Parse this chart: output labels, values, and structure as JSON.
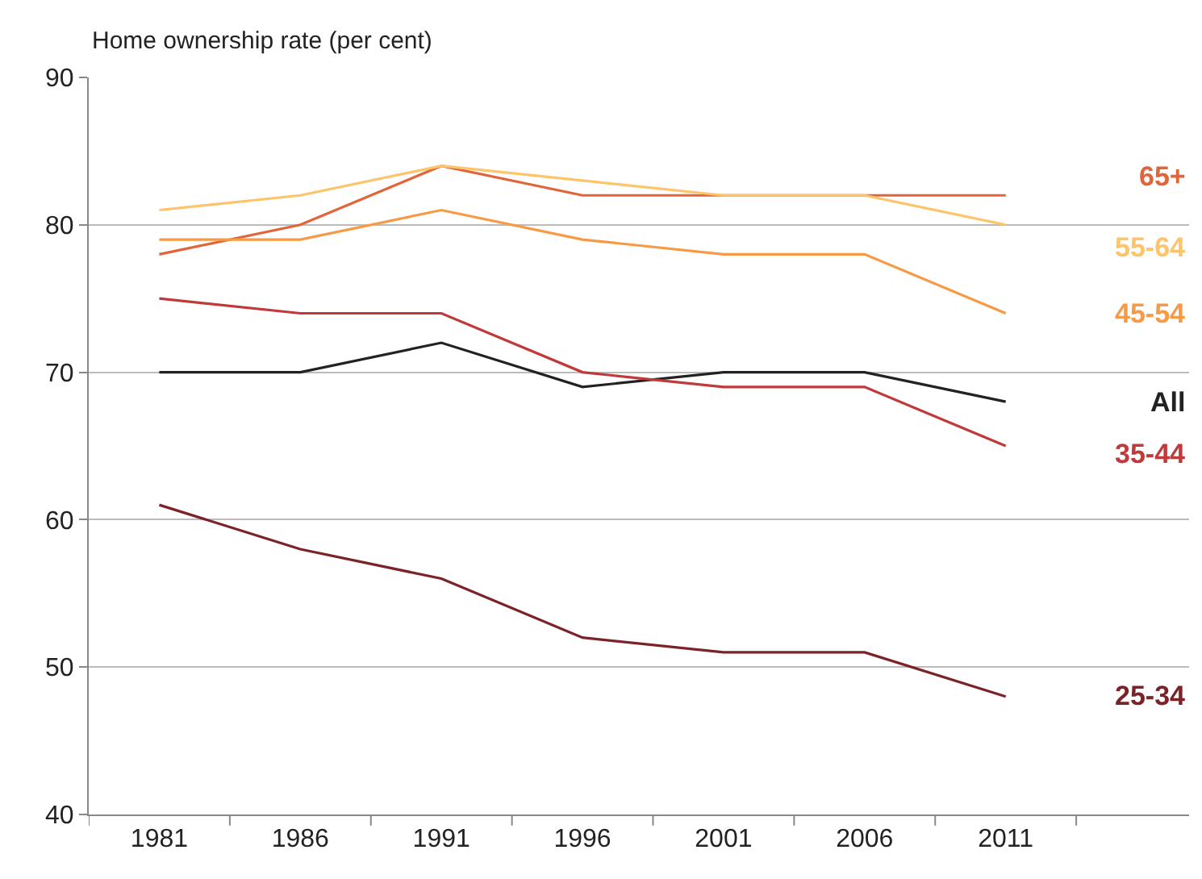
{
  "chart_data": {
    "type": "line",
    "ylabel": "Home ownership rate (per cent)",
    "categories": [
      "1981",
      "1986",
      "1991",
      "1996",
      "2001",
      "2006",
      "2011"
    ],
    "series": [
      {
        "name": "65+",
        "color": "#e0653a",
        "values": [
          78,
          80,
          84,
          82,
          82,
          82,
          82
        ]
      },
      {
        "name": "55-64",
        "color": "#fdc46a",
        "values": [
          81,
          82,
          84,
          83,
          82,
          82,
          80
        ]
      },
      {
        "name": "45-54",
        "color": "#f79a45",
        "values": [
          79,
          79,
          81,
          79,
          78,
          78,
          74
        ]
      },
      {
        "name": "All",
        "color": "#222222",
        "values": [
          70,
          70,
          72,
          69,
          70,
          70,
          68
        ]
      },
      {
        "name": "35-44",
        "color": "#c0393b",
        "values": [
          75,
          74,
          74,
          70,
          69,
          69,
          65
        ]
      },
      {
        "name": "25-34",
        "color": "#7b2328",
        "values": [
          61,
          58,
          56,
          52,
          51,
          51,
          48
        ]
      }
    ],
    "ylim": [
      40,
      90
    ],
    "yticks": [
      40,
      50,
      60,
      70,
      80,
      90
    ],
    "grid": "y",
    "legend": false,
    "marker": "none",
    "line_style": "solid"
  }
}
